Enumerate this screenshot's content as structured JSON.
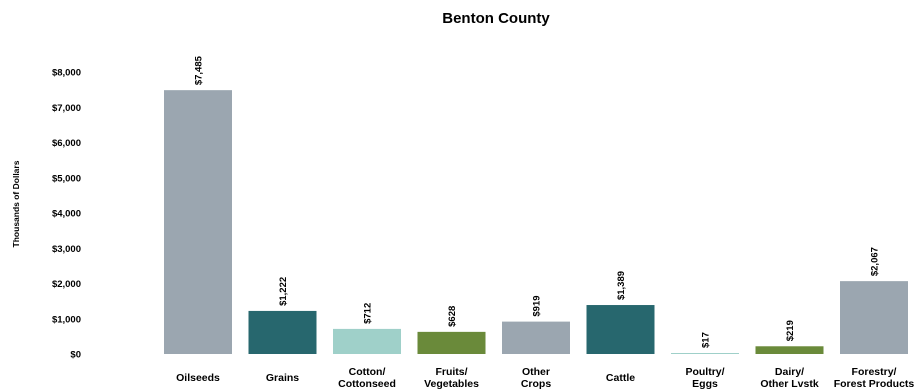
{
  "chart_data": {
    "type": "bar",
    "title": "Benton County",
    "ylabel": "Thousands  of Dollars",
    "xlabel": "",
    "ylim": [
      0,
      8000
    ],
    "yticks": [
      0,
      1000,
      2000,
      3000,
      4000,
      5000,
      6000,
      7000,
      8000
    ],
    "ytick_labels": [
      "$0",
      "$1,000",
      "$2,000",
      "$3,000",
      "$4,000",
      "$5,000",
      "$6,000",
      "$7,000",
      "$8,000"
    ],
    "grid": false,
    "legend": "none",
    "categories": [
      [
        "Oilseeds"
      ],
      [
        "Grains"
      ],
      [
        "Cotton/",
        "Cottonseed"
      ],
      [
        "Fruits/",
        "Vegetables"
      ],
      [
        "Other",
        "Crops"
      ],
      [
        "Cattle"
      ],
      [
        "Poultry/",
        "Eggs"
      ],
      [
        "Dairy/",
        "Other Lvstk"
      ],
      [
        "Forestry/",
        "Forest Products"
      ]
    ],
    "values": [
      7485,
      1222,
      712,
      628,
      919,
      1389,
      17,
      219,
      2067
    ],
    "data_labels": [
      "$7,485",
      "$1,222",
      "$712",
      "$628",
      "$919",
      "$1,389",
      "$17",
      "$219",
      "$2,067"
    ],
    "colors": [
      "#9ba6b0",
      "#27676e",
      "#9fd0c9",
      "#6a8a3a",
      "#9ba6b0",
      "#27676e",
      "#9fd0c9",
      "#6a8a3a",
      "#9ba6b0"
    ]
  }
}
